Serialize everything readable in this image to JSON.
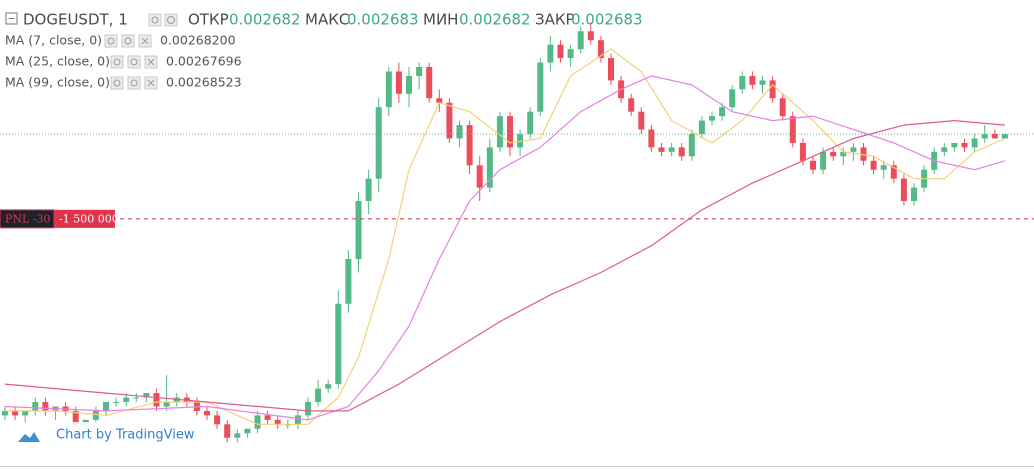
{
  "chart_data": {
    "type": "candlestick",
    "symbol": "DOGEUSDT, 1",
    "ohlc": [
      {
        "label": "ОТКР",
        "value": 0.002682
      },
      {
        "label": "МАКС",
        "value": 0.002683
      },
      {
        "label": "МИН",
        "value": 0.002682
      },
      {
        "label": "ЗАКР",
        "value": 0.002683
      }
    ],
    "ylim": [
      0.002608,
      0.002713
    ],
    "up_color": "#53b987",
    "down_color": "#eb4d5c",
    "candles": [
      [
        0.00262,
        0.002622,
        0.002619,
        0.002621
      ],
      [
        0.002621,
        0.002622,
        0.002619,
        0.00262
      ],
      [
        0.00262,
        0.002621,
        0.002618,
        0.002621
      ],
      [
        0.002621,
        0.002624,
        0.00262,
        0.002623
      ],
      [
        0.002623,
        0.002624,
        0.00262,
        0.002621
      ],
      [
        0.002621,
        0.002622,
        0.002619,
        0.002622
      ],
      [
        0.002622,
        0.002623,
        0.00262,
        0.002621
      ],
      [
        0.002621,
        0.002622,
        0.002617,
        0.002618
      ],
      [
        0.002618,
        0.002619,
        0.002616,
        0.002619
      ],
      [
        0.002619,
        0.002622,
        0.002618,
        0.002621
      ],
      [
        0.002621,
        0.002623,
        0.00262,
        0.002623
      ],
      [
        0.002623,
        0.002624,
        0.002622,
        0.002623
      ],
      [
        0.002623,
        0.002625,
        0.002622,
        0.002624
      ],
      [
        0.002624,
        0.002625,
        0.002623,
        0.002624
      ],
      [
        0.002624,
        0.002625,
        0.002623,
        0.002625
      ],
      [
        0.002625,
        0.002626,
        0.002621,
        0.002622
      ],
      [
        0.002622,
        0.002629,
        0.002621,
        0.002623
      ],
      [
        0.002623,
        0.002625,
        0.002622,
        0.002624
      ],
      [
        0.002624,
        0.002625,
        0.002622,
        0.002623
      ],
      [
        0.002623,
        0.002624,
        0.00262,
        0.002621
      ],
      [
        0.002621,
        0.002622,
        0.002619,
        0.00262
      ],
      [
        0.00262,
        0.002621,
        0.002617,
        0.002618
      ],
      [
        0.002618,
        0.002619,
        0.002614,
        0.002615
      ],
      [
        0.002615,
        0.002617,
        0.002614,
        0.002616
      ],
      [
        0.002616,
        0.002617,
        0.002615,
        0.002617
      ],
      [
        0.002617,
        0.002621,
        0.002616,
        0.00262
      ],
      [
        0.00262,
        0.002621,
        0.002618,
        0.002619
      ],
      [
        0.002619,
        0.00262,
        0.002617,
        0.002618
      ],
      [
        0.002618,
        0.002619,
        0.002617,
        0.002618
      ],
      [
        0.002618,
        0.002621,
        0.002617,
        0.00262
      ],
      [
        0.00262,
        0.002624,
        0.002619,
        0.002623
      ],
      [
        0.002623,
        0.002628,
        0.002622,
        0.002626
      ],
      [
        0.002626,
        0.002628,
        0.002625,
        0.002627
      ],
      [
        0.002627,
        0.002648,
        0.002626,
        0.002645
      ],
      [
        0.002645,
        0.002657,
        0.002643,
        0.002655
      ],
      [
        0.002655,
        0.00267,
        0.002652,
        0.002668
      ],
      [
        0.002668,
        0.002675,
        0.002665,
        0.002673
      ],
      [
        0.002673,
        0.002691,
        0.00267,
        0.002689
      ],
      [
        0.002689,
        0.002698,
        0.002687,
        0.002697
      ],
      [
        0.002697,
        0.002699,
        0.00269,
        0.002692
      ],
      [
        0.002692,
        0.002698,
        0.002689,
        0.002696
      ],
      [
        0.002696,
        0.002699,
        0.002693,
        0.002698
      ],
      [
        0.002698,
        0.002699,
        0.00269,
        0.002691
      ],
      [
        0.002691,
        0.002693,
        0.002688,
        0.00269
      ],
      [
        0.00269,
        0.002691,
        0.002681,
        0.002682
      ],
      [
        0.002682,
        0.002686,
        0.00268,
        0.002685
      ],
      [
        0.002685,
        0.002686,
        0.002674,
        0.002676
      ],
      [
        0.002676,
        0.002678,
        0.002668,
        0.002671
      ],
      [
        0.002671,
        0.002682,
        0.00267,
        0.00268
      ],
      [
        0.00268,
        0.002688,
        0.002679,
        0.002687
      ],
      [
        0.002687,
        0.002688,
        0.002678,
        0.00268
      ],
      [
        0.00268,
        0.002684,
        0.002678,
        0.002683
      ],
      [
        0.002683,
        0.002689,
        0.002682,
        0.002688
      ],
      [
        0.002688,
        0.0027,
        0.002687,
        0.002699
      ],
      [
        0.002699,
        0.002705,
        0.002697,
        0.002703
      ],
      [
        0.002703,
        0.002704,
        0.002699,
        0.0027
      ],
      [
        0.0027,
        0.002703,
        0.002698,
        0.002702
      ],
      [
        0.002702,
        0.002707,
        0.002701,
        0.002706
      ],
      [
        0.002706,
        0.002708,
        0.002703,
        0.002704
      ],
      [
        0.002704,
        0.002705,
        0.002699,
        0.0027
      ],
      [
        0.0027,
        0.002701,
        0.002694,
        0.002695
      ],
      [
        0.002695,
        0.002696,
        0.00269,
        0.002691
      ],
      [
        0.002691,
        0.002692,
        0.002687,
        0.002688
      ],
      [
        0.002688,
        0.002689,
        0.002683,
        0.002684
      ],
      [
        0.002684,
        0.002685,
        0.002679,
        0.00268
      ],
      [
        0.00268,
        0.002681,
        0.002678,
        0.002679
      ],
      [
        0.002679,
        0.002681,
        0.002678,
        0.00268
      ],
      [
        0.00268,
        0.002681,
        0.002677,
        0.002678
      ],
      [
        0.002678,
        0.002684,
        0.002677,
        0.002683
      ],
      [
        0.002683,
        0.002687,
        0.002682,
        0.002686
      ],
      [
        0.002686,
        0.002688,
        0.002685,
        0.002687
      ],
      [
        0.002687,
        0.00269,
        0.002686,
        0.002689
      ],
      [
        0.002689,
        0.002694,
        0.002688,
        0.002693
      ],
      [
        0.002693,
        0.002697,
        0.002692,
        0.002696
      ],
      [
        0.002696,
        0.002697,
        0.002693,
        0.002694
      ],
      [
        0.002694,
        0.002696,
        0.002692,
        0.002695
      ],
      [
        0.002695,
        0.002696,
        0.00269,
        0.002691
      ],
      [
        0.002691,
        0.002692,
        0.002686,
        0.002687
      ],
      [
        0.002687,
        0.002688,
        0.00268,
        0.002681
      ],
      [
        0.002681,
        0.002682,
        0.002676,
        0.002677
      ],
      [
        0.002677,
        0.002678,
        0.002674,
        0.002675
      ],
      [
        0.002675,
        0.00268,
        0.002674,
        0.002679
      ],
      [
        0.002679,
        0.00268,
        0.002677,
        0.002678
      ],
      [
        0.002678,
        0.00268,
        0.002676,
        0.002679
      ],
      [
        0.002679,
        0.002681,
        0.002677,
        0.00268
      ],
      [
        0.00268,
        0.002681,
        0.002676,
        0.002677
      ],
      [
        0.002677,
        0.002678,
        0.002674,
        0.002675
      ],
      [
        0.002675,
        0.002677,
        0.002673,
        0.002676
      ],
      [
        0.002676,
        0.002677,
        0.002672,
        0.002673
      ],
      [
        0.002673,
        0.002674,
        0.002667,
        0.002668
      ],
      [
        0.002668,
        0.002672,
        0.002667,
        0.002671
      ],
      [
        0.002671,
        0.002676,
        0.00267,
        0.002675
      ],
      [
        0.002675,
        0.00268,
        0.002674,
        0.002679
      ],
      [
        0.002679,
        0.002681,
        0.002678,
        0.00268
      ],
      [
        0.00268,
        0.002681,
        0.002679,
        0.002681
      ],
      [
        0.002681,
        0.002682,
        0.002679,
        0.00268
      ],
      [
        0.00268,
        0.002683,
        0.002679,
        0.002682
      ],
      [
        0.002682,
        0.002685,
        0.002681,
        0.002683
      ],
      [
        0.002683,
        0.002684,
        0.002682,
        0.002682
      ],
      [
        0.002682,
        0.002683,
        0.002682,
        0.002683
      ]
    ],
    "indicators": [
      {
        "name": "MA (7, close, 0)",
        "color": "#f6cf7a",
        "label_color": "#e0a800",
        "x": [
          0,
          5,
          10,
          15,
          20,
          25,
          30,
          33,
          35,
          38,
          40,
          43,
          46,
          50,
          53,
          56,
          60,
          63,
          66,
          70,
          73,
          76,
          80,
          83,
          86,
          90,
          93,
          96,
          99
        ],
        "values": [
          0.002621,
          0.002621,
          0.00262,
          0.002623,
          0.002623,
          0.002618,
          0.002618,
          0.002624,
          0.002633,
          0.002655,
          0.002675,
          0.00269,
          0.002688,
          0.002681,
          0.002682,
          0.002696,
          0.002702,
          0.002697,
          0.002686,
          0.002681,
          0.002686,
          0.002694,
          0.002686,
          0.002679,
          0.002678,
          0.002673,
          0.002673,
          0.002679,
          0.002682
        ],
        "last": {
          "value": 0.002682,
          "label": "0.00268200"
        }
      },
      {
        "name": "MA (25, close, 0)",
        "color": "#e680e6",
        "label_color": "#d21ed2",
        "x": [
          0,
          10,
          20,
          30,
          34,
          37,
          40,
          43,
          46,
          49,
          53,
          57,
          61,
          64,
          68,
          72,
          76,
          80,
          84,
          88,
          92,
          96,
          99
        ],
        "values": [
          0.002622,
          0.002621,
          0.002622,
          0.002619,
          0.002622,
          0.00263,
          0.00264,
          0.002655,
          0.002668,
          0.002675,
          0.00268,
          0.002688,
          0.002693,
          0.002696,
          0.002694,
          0.002688,
          0.002686,
          0.002687,
          0.002684,
          0.002681,
          0.002677,
          0.002675,
          0.002677
        ],
        "last": {
          "value": 0.00267696,
          "label": "0.00267696"
        }
      },
      {
        "name": "MA (99, close, 0)",
        "color": "#e05a8e",
        "label_color": "#c2185b",
        "x": [
          0,
          10,
          20,
          30,
          34,
          39,
          44,
          49,
          54,
          59,
          64,
          69,
          74,
          79,
          84,
          89,
          94,
          99
        ],
        "values": [
          0.002627,
          0.002625,
          0.002623,
          0.002621,
          0.002621,
          0.002627,
          0.002634,
          0.002641,
          0.002647,
          0.002652,
          0.002658,
          0.002666,
          0.002672,
          0.002677,
          0.002682,
          0.002685,
          0.002686,
          0.002685
        ],
        "last": {
          "value": 0.00268523,
          "label": "0.00268523"
        }
      }
    ],
    "position": {
      "label": "PNL -30",
      "quantity": {
        "value": -1500000,
        "label": "-1 500 000"
      },
      "price": 0.002664,
      "color": "#e0344a"
    },
    "branding": "Chart by TradingView"
  }
}
